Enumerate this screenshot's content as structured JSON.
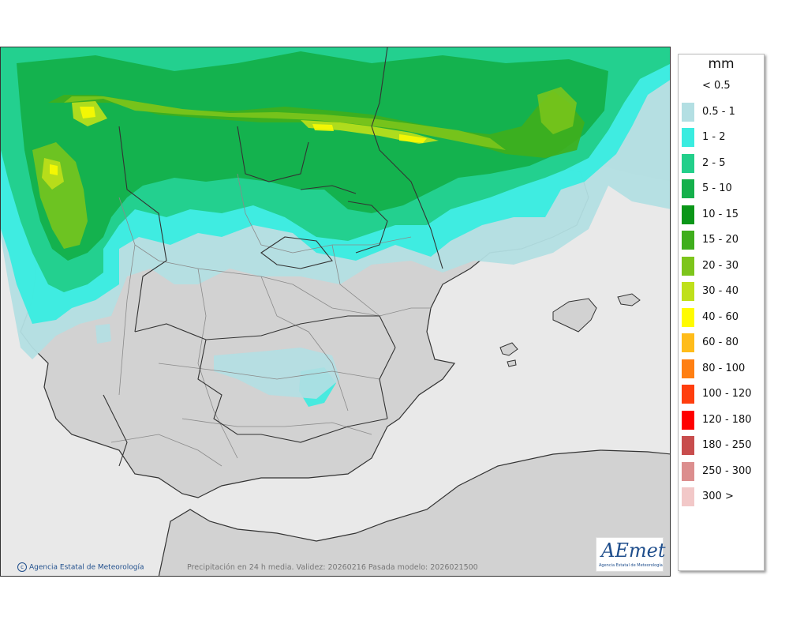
{
  "map": {
    "legend_unit": "mm",
    "legend": [
      {
        "label": "< 0.5",
        "color": "#ffffff"
      },
      {
        "label": "0.5 - 1",
        "color": "#b3dfe3"
      },
      {
        "label": "1 - 2",
        "color": "#39ece0"
      },
      {
        "label": "2 - 5",
        "color": "#22cf8a"
      },
      {
        "label": "5 - 10",
        "color": "#14b04b"
      },
      {
        "label": "10 - 15",
        "color": "#0a9618"
      },
      {
        "label": "15 - 20",
        "color": "#3fae1c"
      },
      {
        "label": "20 - 30",
        "color": "#7dc51b"
      },
      {
        "label": "30 - 40",
        "color": "#bfe01a"
      },
      {
        "label": "40 - 60",
        "color": "#fffb00"
      },
      {
        "label": "60 - 80",
        "color": "#ffbc1a"
      },
      {
        "label": "80 - 100",
        "color": "#ff7f12"
      },
      {
        "label": "100 - 120",
        "color": "#ff3e0e"
      },
      {
        "label": "120 - 180",
        "color": "#ff0000"
      },
      {
        "label": "180 - 250",
        "color": "#c84d4d"
      },
      {
        "label": "250 - 300",
        "color": "#dc8e8e"
      },
      {
        "label": "300 >",
        "color": "#f2c8c8"
      }
    ],
    "credit": "Agencia Estatal de Meteorología",
    "caption": "Precipitación en 24 h media. Validez: 20260216 Pasada modelo: 2026021500",
    "logo": {
      "wordmark": "AEmet",
      "subtitle": "Agencia Estatal de Meteorología"
    },
    "colors": {
      "land": "#d2d2d2",
      "sea": "#e9e9e9",
      "border": "#333333",
      "region": "#8a8a8a"
    }
  }
}
